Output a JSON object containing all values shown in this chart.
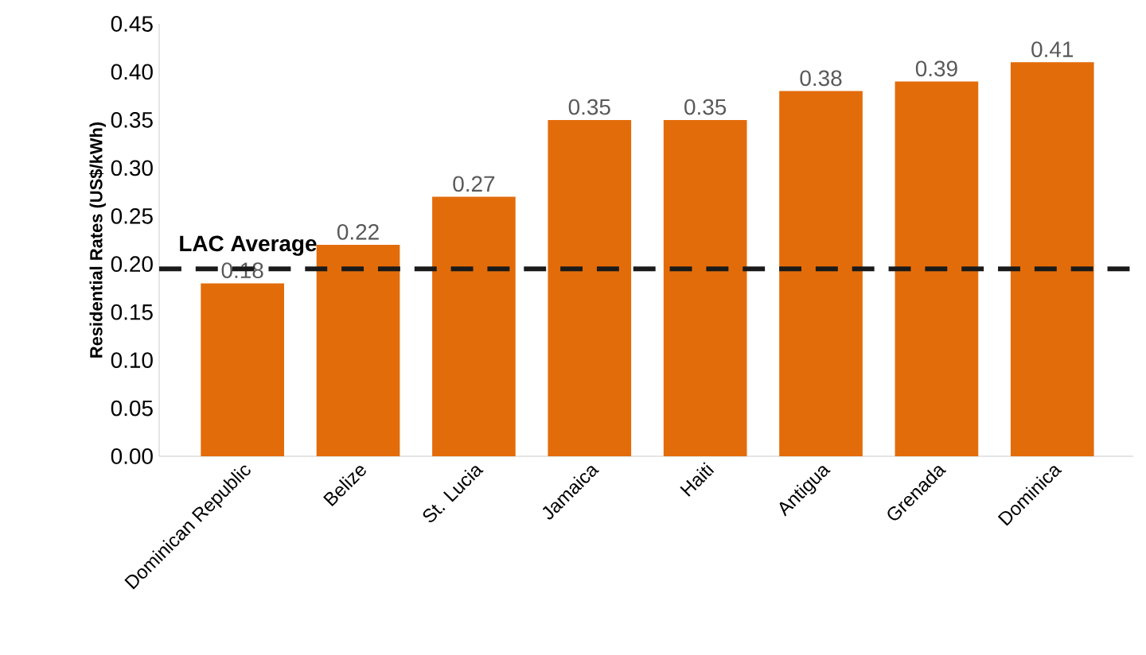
{
  "chart_data": {
    "type": "bar",
    "ylabel": "Residential Rates (US$/kWh)",
    "categories": [
      "Dominican Republic",
      "Belize",
      "St. Lucia",
      "Jamaica",
      "Haiti",
      "Antigua",
      "Grenada",
      "Dominica"
    ],
    "values": [
      0.18,
      0.22,
      0.27,
      0.35,
      0.35,
      0.38,
      0.39,
      0.41
    ],
    "color": "#e36c0a",
    "data_labels": true,
    "ylim": [
      0,
      0.45
    ],
    "yticks": [
      {
        "value": 0,
        "label": "0.00"
      },
      {
        "value": 0.05,
        "label": "0.05"
      },
      {
        "value": 0.1,
        "label": "0.10"
      },
      {
        "value": 0.15,
        "label": "0.15"
      },
      {
        "value": 0.2,
        "label": "0.20"
      },
      {
        "value": 0.25,
        "label": "0.25"
      },
      {
        "value": 0.3,
        "label": "0.30"
      },
      {
        "value": 0.35,
        "label": "0.35"
      },
      {
        "value": 0.4,
        "label": "0.40"
      },
      {
        "value": 0.45,
        "label": "0.45"
      }
    ],
    "ref_lines": [
      {
        "axis": "y",
        "value": 0.195,
        "label": "LAC Average",
        "color": "#1a1a1a",
        "line_style": "dashed"
      }
    ],
    "grid": false
  }
}
